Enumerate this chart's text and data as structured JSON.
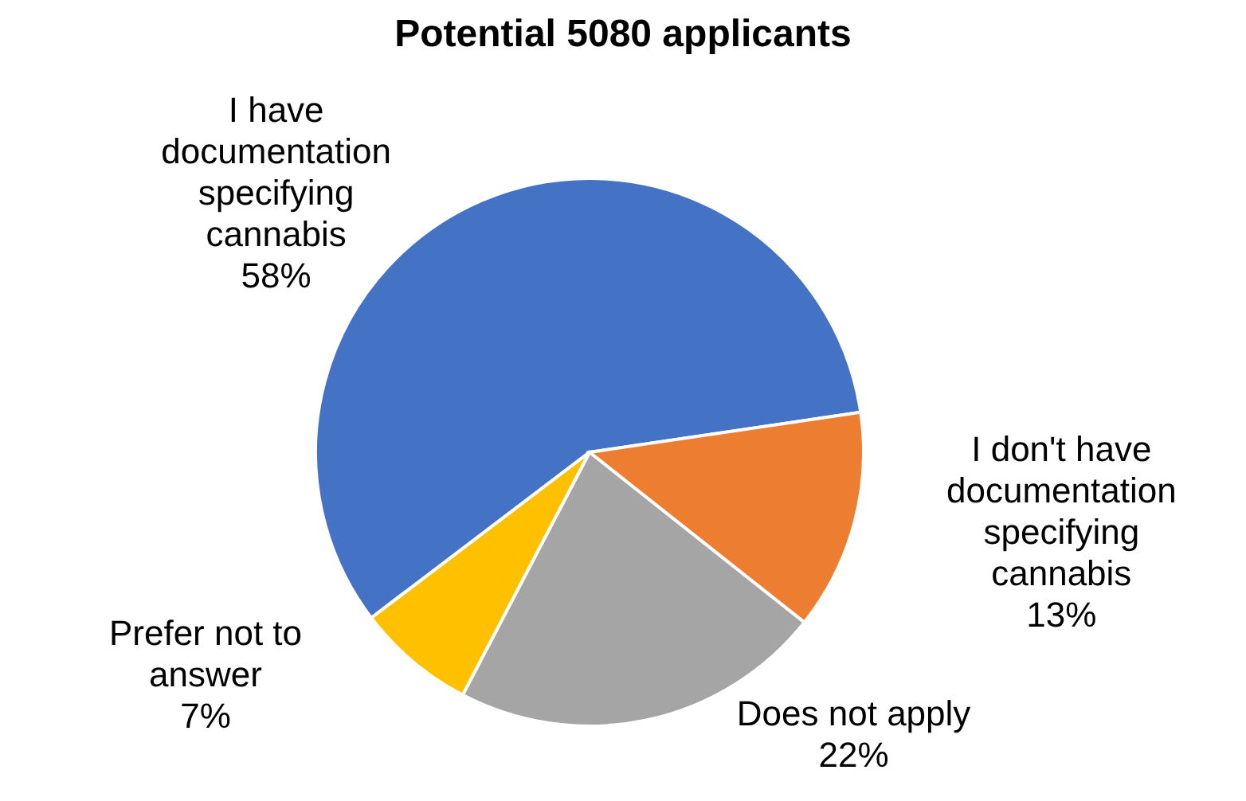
{
  "chart_data": {
    "type": "pie",
    "title": "Potential 5080 applicants",
    "categories": [
      "I have documentation specifying cannabis",
      "I don't have documentation specifying cannabis",
      "Does not apply",
      "Prefer not to answer"
    ],
    "values": [
      58,
      13,
      22,
      7
    ],
    "value_labels": [
      "58%",
      "13%",
      "22%",
      "7%"
    ],
    "colors": [
      "#4472c4",
      "#ed7d31",
      "#a5a5a5",
      "#ffc000"
    ],
    "legend": false
  }
}
